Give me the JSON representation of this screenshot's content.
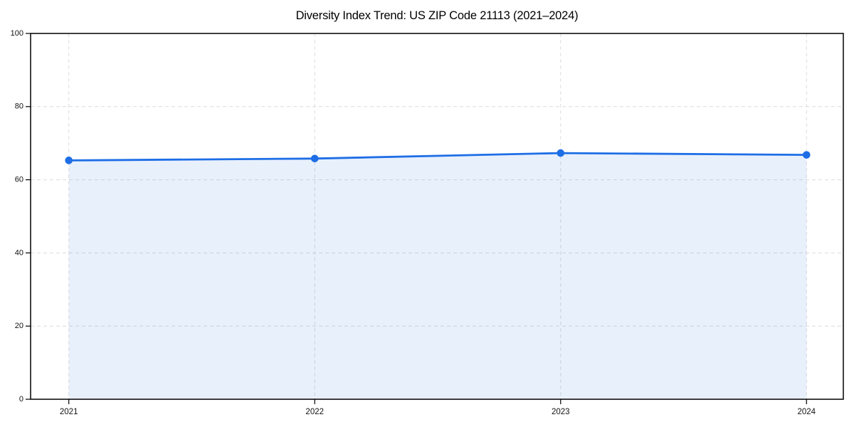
{
  "chart_data": {
    "type": "area",
    "title": "Diversity Index Trend: US ZIP Code 21113 (2021–2024)",
    "x": [
      "2021",
      "2022",
      "2023",
      "2024"
    ],
    "series": [
      {
        "name": "Diversity Index",
        "values": [
          65.3,
          65.8,
          67.3,
          66.8
        ]
      }
    ],
    "xlabel": "",
    "ylabel": "",
    "ylim": [
      0,
      100
    ],
    "yticks": [
      0,
      20,
      40,
      60,
      80,
      100
    ],
    "grid": true,
    "grid_style": "dashed",
    "legend": false,
    "marker": "circle",
    "colors": {
      "line": "#1e6ee6",
      "fill": "#1e6ee6",
      "fill_opacity": "0.10",
      "grid": "#dcdcdc",
      "frame": "#000000",
      "tick_label": "#111111",
      "background": "#ffffff"
    }
  }
}
